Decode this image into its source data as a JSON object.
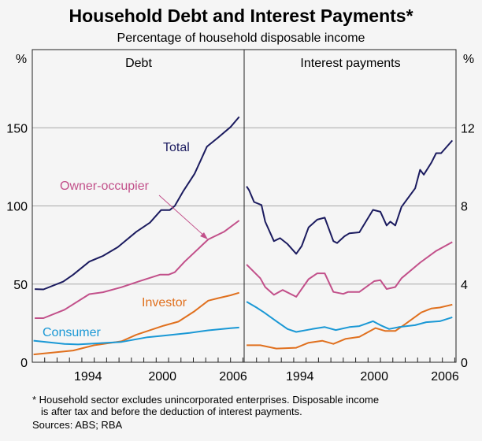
{
  "title": "Household Debt and Interest Payments*",
  "subtitle": "Percentage of household disposable income",
  "footnote": {
    "line1": "*  Household sector excludes unincorporated enterprises. Disposable income",
    "line2": "is after tax and before the deduction of interest payments.",
    "sources": "Sources: ABS; RBA"
  },
  "colors": {
    "Total": "#1b1b5f",
    "Owner-occupier": "#c2508a",
    "Investor": "#e0701e",
    "Consumer": "#1a98d5",
    "grid": "#a8a8a8",
    "background": "#f5f5f5"
  },
  "chart_data": [
    {
      "type": "line",
      "title": "Debt",
      "ylabel": "%",
      "ylim": [
        0,
        200
      ],
      "yticks": [
        0,
        50,
        100,
        150
      ],
      "xlim": [
        1990,
        2007.1
      ],
      "xtick_labels": [
        "1994",
        "2000",
        "2006"
      ],
      "grid": true,
      "series": [
        {
          "name": "Total",
          "points": [
            [
              1990.2,
              46.8
            ],
            [
              1990.9,
              46.6
            ],
            [
              1992.5,
              51.6
            ],
            [
              1993.3,
              56
            ],
            [
              1994.6,
              64.4
            ],
            [
              1995.7,
              68
            ],
            [
              1996.9,
              73.6
            ],
            [
              1998.4,
              83.5
            ],
            [
              1999.5,
              89.3
            ],
            [
              2000.4,
              97.4
            ],
            [
              2001.1,
              97.4
            ],
            [
              2001.5,
              100
            ],
            [
              2002.2,
              109.6
            ],
            [
              2003.1,
              120.6
            ],
            [
              2004.1,
              138
            ],
            [
              2005.0,
              143.8
            ],
            [
              2006.0,
              150.5
            ],
            [
              2006.7,
              157
            ]
          ]
        },
        {
          "name": "Owner-occupier",
          "points": [
            [
              1990.2,
              28.2
            ],
            [
              1990.9,
              28.2
            ],
            [
              1992.6,
              33.6
            ],
            [
              1994.6,
              43.6
            ],
            [
              1995.7,
              44.8
            ],
            [
              1997.2,
              48
            ],
            [
              1998.7,
              52
            ],
            [
              2000.3,
              56
            ],
            [
              2001.0,
              56
            ],
            [
              2001.5,
              57.6
            ],
            [
              2002.3,
              64.4
            ],
            [
              2004.2,
              78.6
            ],
            [
              2005.5,
              83.6
            ],
            [
              2006.7,
              90.7
            ]
          ]
        },
        {
          "name": "Investor",
          "points": [
            [
              1990.1,
              5
            ],
            [
              1993.3,
              7.5
            ],
            [
              1995.0,
              10.9
            ],
            [
              1997.2,
              13.4
            ],
            [
              1998.4,
              17.6
            ],
            [
              2000.6,
              23.4
            ],
            [
              2001.8,
              26
            ],
            [
              2003.1,
              32.7
            ],
            [
              2004.2,
              39.4
            ],
            [
              2005.0,
              41
            ],
            [
              2006.0,
              42.8
            ],
            [
              2006.7,
              44.5
            ]
          ]
        },
        {
          "name": "Consumer",
          "points": [
            [
              1990.1,
              13.8
            ],
            [
              1992.6,
              11.7
            ],
            [
              1993.7,
              11.4
            ],
            [
              1997.2,
              13
            ],
            [
              1999.3,
              16
            ],
            [
              2000.6,
              17
            ],
            [
              2002.7,
              18.8
            ],
            [
              2004.2,
              20.4
            ],
            [
              2006.0,
              21.8
            ],
            [
              2006.7,
              22.2
            ]
          ]
        }
      ]
    },
    {
      "type": "line",
      "title": "Interest payments",
      "ylabel": "%",
      "ylim": [
        0,
        16
      ],
      "yticks": [
        0,
        4,
        8,
        12
      ],
      "xlim": [
        1990,
        2007.1
      ],
      "xtick_labels": [
        "1994",
        "2000",
        "2006"
      ],
      "grid": true,
      "series": [
        {
          "name": "Total",
          "points": [
            [
              1990.2,
              9.0
            ],
            [
              1990.4,
              8.8
            ],
            [
              1990.8,
              8.2
            ],
            [
              1991.4,
              8.05
            ],
            [
              1991.7,
              7.2
            ],
            [
              1992.4,
              6.2
            ],
            [
              1992.9,
              6.35
            ],
            [
              1993.5,
              6.05
            ],
            [
              1994.2,
              5.55
            ],
            [
              1994.65,
              5.95
            ],
            [
              1995.2,
              6.9
            ],
            [
              1995.9,
              7.3
            ],
            [
              1996.5,
              7.4
            ],
            [
              1997.2,
              6.2
            ],
            [
              1997.5,
              6.1
            ],
            [
              1998.1,
              6.45
            ],
            [
              1998.5,
              6.6
            ],
            [
              1999.3,
              6.65
            ],
            [
              2000.4,
              7.8
            ],
            [
              2001.0,
              7.7
            ],
            [
              2001.5,
              7.0
            ],
            [
              2001.8,
              7.2
            ],
            [
              2002.2,
              7.0
            ],
            [
              2002.7,
              7.95
            ],
            [
              2003.8,
              8.9
            ],
            [
              2004.2,
              9.85
            ],
            [
              2004.5,
              9.6
            ],
            [
              2005.1,
              10.2
            ],
            [
              2005.5,
              10.7
            ],
            [
              2005.9,
              10.7
            ],
            [
              2006.8,
              11.35
            ]
          ]
        },
        {
          "name": "Owner-occupier",
          "points": [
            [
              1990.2,
              5.0
            ],
            [
              1991.3,
              4.3
            ],
            [
              1991.7,
              3.85
            ],
            [
              1992.4,
              3.45
            ],
            [
              1993.1,
              3.7
            ],
            [
              1994.2,
              3.35
            ],
            [
              1995.2,
              4.25
            ],
            [
              1995.9,
              4.55
            ],
            [
              1996.5,
              4.55
            ],
            [
              1997.2,
              3.6
            ],
            [
              1998.0,
              3.5
            ],
            [
              1998.4,
              3.6
            ],
            [
              1999.3,
              3.6
            ],
            [
              2000.5,
              4.15
            ],
            [
              2001.0,
              4.2
            ],
            [
              2001.5,
              3.75
            ],
            [
              2002.2,
              3.85
            ],
            [
              2002.7,
              4.3
            ],
            [
              2004.2,
              5.1
            ],
            [
              2005.5,
              5.7
            ],
            [
              2006.8,
              6.15
            ]
          ]
        },
        {
          "name": "Investor",
          "points": [
            [
              1990.2,
              0.87
            ],
            [
              1991.3,
              0.87
            ],
            [
              1992.6,
              0.7
            ],
            [
              1994.2,
              0.74
            ],
            [
              1995.2,
              1.0
            ],
            [
              1996.3,
              1.1
            ],
            [
              1997.2,
              0.94
            ],
            [
              1998.2,
              1.2
            ],
            [
              1999.3,
              1.3
            ],
            [
              2000.6,
              1.75
            ],
            [
              2001.4,
              1.6
            ],
            [
              2002.2,
              1.6
            ],
            [
              2003.0,
              1.95
            ],
            [
              2004.3,
              2.55
            ],
            [
              2005.1,
              2.75
            ],
            [
              2005.8,
              2.8
            ],
            [
              2006.8,
              2.95
            ]
          ]
        },
        {
          "name": "Consumer",
          "points": [
            [
              1990.2,
              3.1
            ],
            [
              1991.0,
              2.8
            ],
            [
              1991.6,
              2.55
            ],
            [
              1992.6,
              2.1
            ],
            [
              1993.5,
              1.7
            ],
            [
              1994.2,
              1.55
            ],
            [
              1995.5,
              1.7
            ],
            [
              1996.5,
              1.8
            ],
            [
              1997.4,
              1.65
            ],
            [
              1998.5,
              1.8
            ],
            [
              1999.3,
              1.85
            ],
            [
              2000.4,
              2.1
            ],
            [
              2001.0,
              1.9
            ],
            [
              2001.7,
              1.7
            ],
            [
              2002.5,
              1.8
            ],
            [
              2003.8,
              1.9
            ],
            [
              2004.7,
              2.05
            ],
            [
              2005.8,
              2.1
            ],
            [
              2006.8,
              2.3
            ]
          ]
        }
      ]
    }
  ]
}
